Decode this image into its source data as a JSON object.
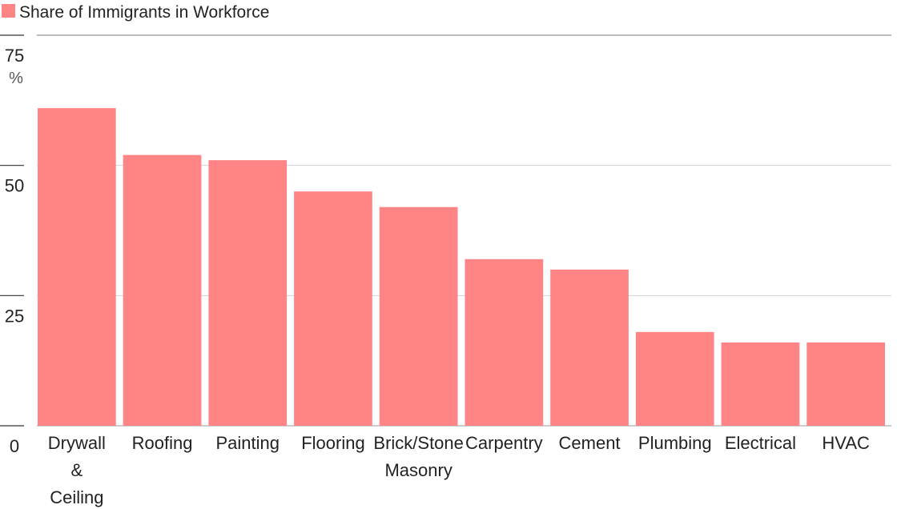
{
  "chart_data": {
    "type": "bar",
    "categories": [
      "Drywall & Ceiling",
      "Roofing",
      "Painting",
      "Flooring",
      "Brick/Stone Masonry",
      "Carpentry",
      "Cement",
      "Plumbing",
      "Electrical",
      "HVAC"
    ],
    "category_lines": [
      [
        "Drywall",
        "&",
        "Ceiling"
      ],
      [
        "Roofing"
      ],
      [
        "Painting"
      ],
      [
        "Flooring"
      ],
      [
        "Brick/Stone",
        "Masonry"
      ],
      [
        "Carpentry"
      ],
      [
        "Cement"
      ],
      [
        "Plumbing"
      ],
      [
        "Electrical"
      ],
      [
        "HVAC"
      ]
    ],
    "series": [
      {
        "name": "Share of Immigrants in Workforce",
        "values": [
          61,
          52,
          51,
          45,
          42,
          32,
          30,
          18,
          16,
          16
        ],
        "color": "#ff8486"
      }
    ],
    "yticks": [
      0,
      25,
      50,
      75
    ],
    "yunit": "%",
    "ylim": [
      0,
      75
    ],
    "grid": true,
    "legend": "top-left"
  }
}
